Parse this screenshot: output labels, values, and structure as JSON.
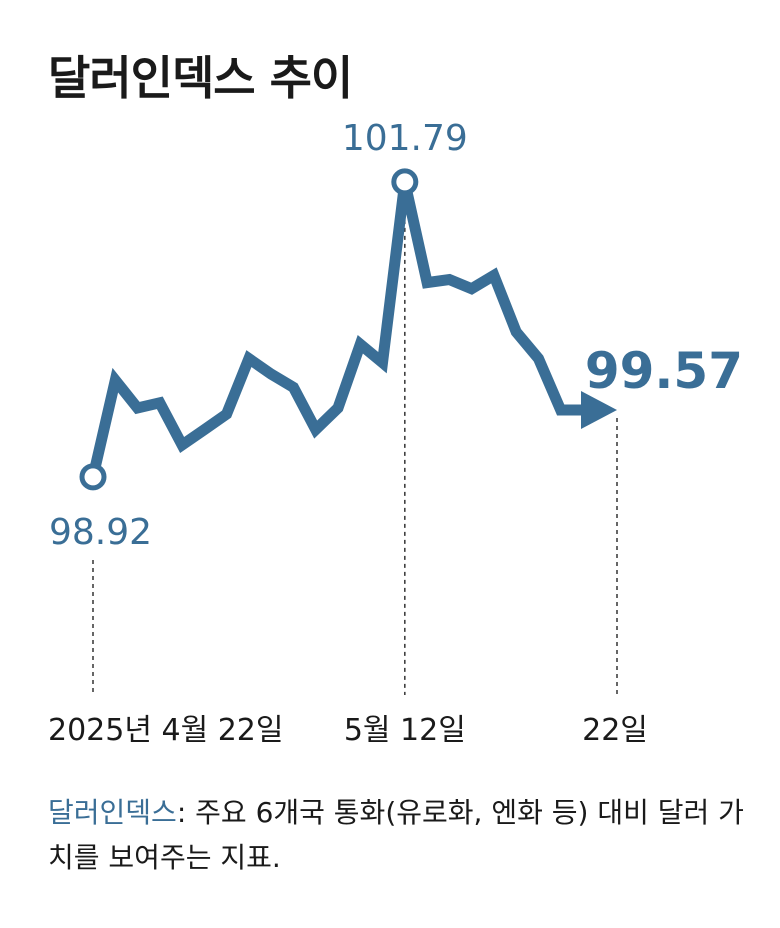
{
  "title": "달러인덱스 추이",
  "colors": {
    "line": "#3a6e96",
    "text": "#1a1a1a",
    "guide": "#333333"
  },
  "chart_data": {
    "type": "line",
    "title": "달러인덱스 추이",
    "xlabel": "",
    "ylabel": "",
    "ylim": [
      98.5,
      102.1
    ],
    "x_labels": [
      "2025년 4월 22일",
      "5월 12일",
      "22일"
    ],
    "series": [
      {
        "values": [
          98.92,
          99.86,
          99.59,
          99.64,
          99.23,
          99.38,
          99.53,
          100.07,
          99.92,
          99.79,
          99.38,
          99.59,
          100.21,
          100.03,
          101.79,
          100.81,
          100.84,
          100.75,
          100.88,
          100.33,
          100.07,
          99.57,
          99.57
        ]
      }
    ],
    "x_label_indices": [
      0,
      14,
      22
    ],
    "annotations": [
      {
        "index": 0,
        "text": "98.92",
        "kind": "start"
      },
      {
        "index": 14,
        "text": "101.79",
        "kind": "peak"
      },
      {
        "index": 22,
        "text": "99.57",
        "kind": "end"
      }
    ]
  },
  "footnote": {
    "term": "달러인덱스",
    "rest": ": 주요 6개국 통화(유로화, 엔화 등) 대비 달러 가치를 보여주는 지표."
  }
}
